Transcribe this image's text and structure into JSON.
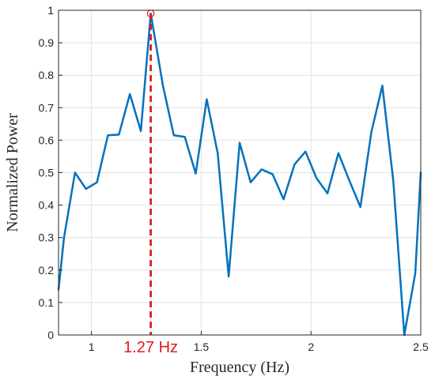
{
  "chart_data": {
    "type": "line",
    "title": "",
    "xlabel": "Frequency (Hz)",
    "ylabel": "Normalized Power",
    "xlim": [
      0.85,
      2.5
    ],
    "ylim": [
      0,
      1
    ],
    "grid": true,
    "colors": {
      "series": "#0072BD",
      "peak": "#e01b1b",
      "grid": "#e2e2e2",
      "axis": "#262626"
    },
    "x_ticks": [
      {
        "value": 1,
        "label": "1"
      },
      {
        "value": 1.5,
        "label": "1.5"
      },
      {
        "value": 2,
        "label": "2"
      },
      {
        "value": 2.5,
        "label": "2.5"
      }
    ],
    "y_ticks": [
      {
        "value": 0,
        "label": "0"
      },
      {
        "value": 0.1,
        "label": "0.1"
      },
      {
        "value": 0.2,
        "label": "0.2"
      },
      {
        "value": 0.3,
        "label": "0.3"
      },
      {
        "value": 0.4,
        "label": "0.4"
      },
      {
        "value": 0.5,
        "label": "0.5"
      },
      {
        "value": 0.6,
        "label": "0.6"
      },
      {
        "value": 0.7,
        "label": "0.7"
      },
      {
        "value": 0.8,
        "label": "0.8"
      },
      {
        "value": 0.9,
        "label": "0.9"
      },
      {
        "value": 1,
        "label": "1"
      }
    ],
    "series": [
      {
        "x": [
          0.85,
          0.875,
          0.925,
          0.975,
          1.025,
          1.075,
          1.125,
          1.175,
          1.225,
          1.27,
          1.325,
          1.375,
          1.425,
          1.475,
          1.525,
          1.575,
          1.625,
          1.675,
          1.725,
          1.775,
          1.825,
          1.875,
          1.925,
          1.975,
          2.025,
          2.075,
          2.125,
          2.175,
          2.225,
          2.275,
          2.325,
          2.375,
          2.425,
          2.475,
          2.5
        ],
        "values": [
          0.14,
          0.3,
          0.5,
          0.45,
          0.47,
          0.615,
          0.617,
          0.742,
          0.628,
          0.99,
          0.77,
          0.615,
          0.61,
          0.497,
          0.726,
          0.56,
          0.18,
          0.592,
          0.47,
          0.51,
          0.495,
          0.418,
          0.525,
          0.565,
          0.483,
          0.436,
          0.56,
          0.475,
          0.394,
          0.625,
          0.768,
          0.474,
          0.0,
          0.19,
          0.5
        ]
      }
    ],
    "annotations": [
      {
        "type": "peak",
        "x": 1.27,
        "y": 0.99,
        "label": "1.27 Hz"
      }
    ]
  }
}
